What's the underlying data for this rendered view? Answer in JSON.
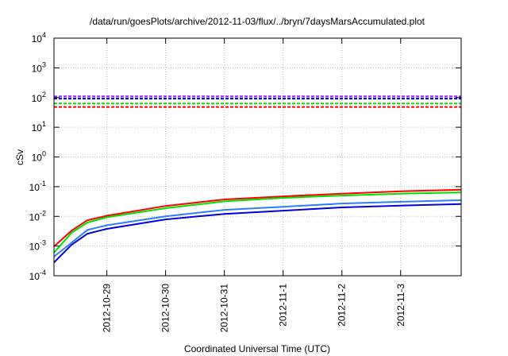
{
  "chart_data": {
    "type": "line",
    "title": "/data/run/goesPlots/archive/2012-11-03/flux/../bryn/7daysMarsAccumulated.plot",
    "xlabel": "Coordinated Universal Time (UTC)",
    "ylabel": "cSv",
    "yscale": "log",
    "ylim": [
      0.0001,
      10000
    ],
    "xlim_days_from_2012-10-29": [
      -0.9,
      6.03
    ],
    "grid": true,
    "y_ticks": [
      {
        "base": "10",
        "exp": "-4"
      },
      {
        "base": "10",
        "exp": "-3"
      },
      {
        "base": "10",
        "exp": "-2"
      },
      {
        "base": "10",
        "exp": "-1"
      },
      {
        "base": "10",
        "exp": "0"
      },
      {
        "base": "10",
        "exp": "1"
      },
      {
        "base": "10",
        "exp": "2"
      },
      {
        "base": "10",
        "exp": "3"
      },
      {
        "base": "10",
        "exp": "4"
      }
    ],
    "x_ticks": [
      "2012-10-29",
      "2012-10-30",
      "2012-10-31",
      "2012-11-1",
      "2012-11-2",
      "2012-11-3"
    ],
    "x": [
      -0.9,
      -0.6,
      -0.33,
      0,
      1,
      2,
      3,
      4,
      5,
      6.03
    ],
    "series": [
      {
        "name": "red",
        "color": "#ff0000",
        "values": [
          0.00097,
          0.0033,
          0.0074,
          0.0105,
          0.0224,
          0.037,
          0.047,
          0.058,
          0.07,
          0.079
        ]
      },
      {
        "name": "green",
        "color": "#00e000",
        "values": [
          0.0006,
          0.0028,
          0.0062,
          0.0093,
          0.0188,
          0.032,
          0.042,
          0.05,
          0.058,
          0.064
        ]
      },
      {
        "name": "light-blue",
        "color": "#2a7fff",
        "values": [
          0.00044,
          0.0013,
          0.0035,
          0.005,
          0.01,
          0.0165,
          0.021,
          0.027,
          0.031,
          0.035
        ]
      },
      {
        "name": "blue",
        "color": "#0000e0",
        "values": [
          0.00028,
          0.0011,
          0.0026,
          0.0038,
          0.0079,
          0.0121,
          0.0155,
          0.02,
          0.023,
          0.026
        ]
      }
    ],
    "limits": [
      {
        "name": "purple-limit",
        "color": "#a020f0",
        "value": 110
      },
      {
        "name": "blue-limit",
        "color": "#0000e0",
        "value": 92
      },
      {
        "name": "green-limit",
        "color": "#00e000",
        "value": 63
      },
      {
        "name": "red-limit",
        "color": "#ff0000",
        "value": 48
      }
    ]
  }
}
